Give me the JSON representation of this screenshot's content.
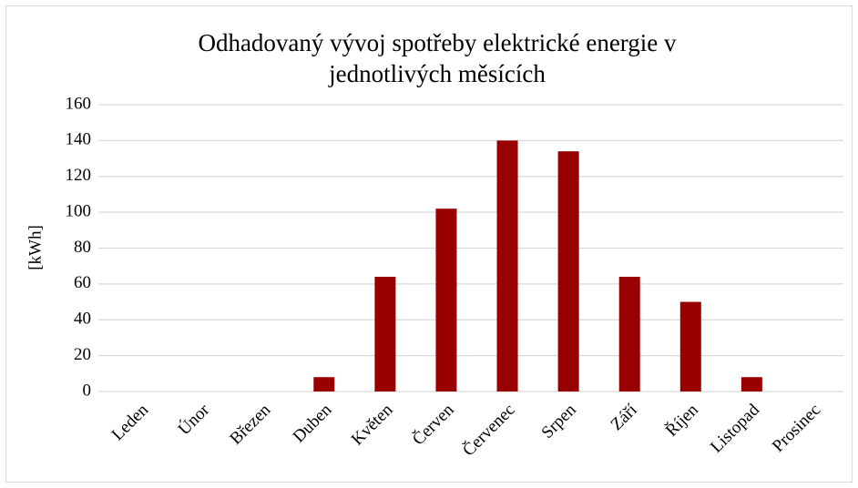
{
  "chart_data": {
    "type": "bar",
    "title": "Odhadovaný vývoj spotřeby elektrické energie v jednotlivých měsících",
    "y_label": "[kWh]",
    "categories": [
      "Leden",
      "Únor",
      "Březen",
      "Duben",
      "Květen",
      "Červen",
      "Červenec",
      "Srpen",
      "Září",
      "Říjen",
      "Listopad",
      "Prosinec"
    ],
    "values": [
      0,
      0,
      0,
      8,
      64,
      102,
      140,
      134,
      64,
      50,
      8,
      0
    ],
    "color": "#990000",
    "ylim": [
      0,
      160
    ],
    "yticks": [
      0,
      20,
      40,
      60,
      80,
      100,
      120,
      140,
      160
    ],
    "grid": true
  }
}
